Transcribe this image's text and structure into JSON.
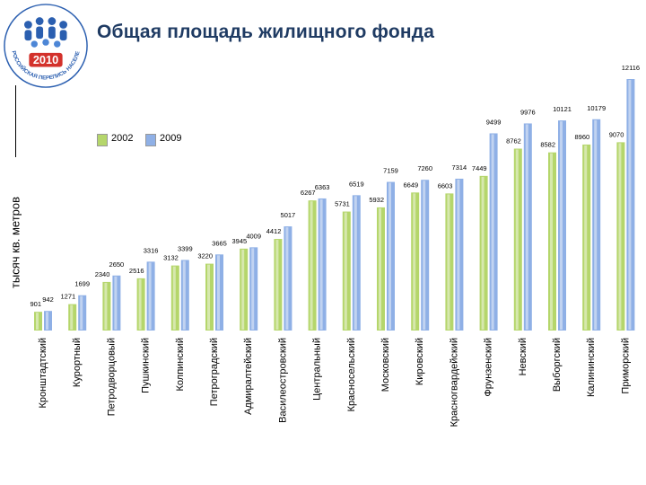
{
  "logo": {
    "year": "2010",
    "ring_text": "ВСЕРОССИЙСКАЯ ПЕРЕПИСЬ НАСЕЛЕНИЯ"
  },
  "page": {
    "title": "Общая площадь жилищного фонда"
  },
  "colors": {
    "green": "#b5d66b",
    "blue": "#8fb0e6",
    "title": "#1f3b63",
    "logo_blue": "#2b5fb0",
    "logo_red": "#d3312b"
  },
  "chart_data": {
    "type": "bar",
    "title": "Общая площадь жилищного фонда",
    "xlabel": "",
    "ylabel": "тысяч  кв. метров",
    "ylim": [
      0,
      12500
    ],
    "grid": false,
    "legend_position": "top-left",
    "categories": [
      "Кронштадтский",
      "Курортный",
      "Петродворцовый",
      "Пушкинский",
      "Колпинский",
      "Петроградский",
      "Адмиралтейский",
      "Василеостровский",
      "Центральный",
      "Красносельский",
      "Московский",
      "Кировский",
      "Красногвардейский",
      "Фрунзенский",
      "Невский",
      "Выборгский",
      "Калининский",
      "Приморский"
    ],
    "series": [
      {
        "name": "2002",
        "values": [
          901,
          1271,
          2340,
          2516,
          3132,
          3220,
          3945,
          4412,
          6267,
          5731,
          5932,
          6649,
          6603,
          7449,
          8762,
          8582,
          8960,
          9070
        ]
      },
      {
        "name": "2009",
        "values": [
          942,
          1699,
          2650,
          3316,
          3399,
          3665,
          4009,
          5017,
          6363,
          6519,
          7159,
          7260,
          7314,
          9499,
          9976,
          10121,
          10179,
          12116
        ]
      }
    ]
  }
}
